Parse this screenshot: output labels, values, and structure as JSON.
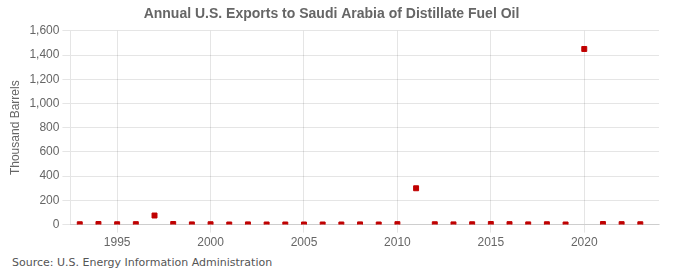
{
  "chart_data": {
    "type": "scatter",
    "title": "Annual U.S. Exports to Saudi Arabia of Distillate Fuel Oil",
    "ylabel": "Thousand Barrels",
    "annotations": [
      "Source: U.S. Energy Information Administration"
    ],
    "x": [
      1993,
      1994,
      1995,
      1996,
      1997,
      1998,
      1999,
      2000,
      2001,
      2002,
      2003,
      2004,
      2005,
      2006,
      2007,
      2008,
      2009,
      2010,
      2011,
      2012,
      2013,
      2014,
      2015,
      2016,
      2017,
      2018,
      2019,
      2020,
      2021,
      2022,
      2023
    ],
    "values": [
      3,
      5,
      3,
      4,
      75,
      5,
      2,
      3,
      1,
      2,
      1,
      1,
      1,
      1,
      1,
      2,
      1,
      4,
      300,
      3,
      2,
      3,
      5,
      4,
      2,
      3,
      1,
      1450,
      5,
      4,
      3
    ],
    "color": "#c00000",
    "marker": "square",
    "xlim": [
      1992.5,
      2024
    ],
    "xticks": [
      1995,
      2000,
      2005,
      2010,
      2015,
      2020
    ],
    "ylim": [
      0,
      1600
    ],
    "yticks": [
      0,
      200,
      400,
      600,
      800,
      {
        "value": 1000,
        "label": "1,000"
      },
      {
        "value": 1200,
        "label": "1,200"
      },
      {
        "value": 1400,
        "label": "1,400"
      },
      {
        "value": 1600,
        "label": "1,600"
      }
    ],
    "grid": true
  }
}
